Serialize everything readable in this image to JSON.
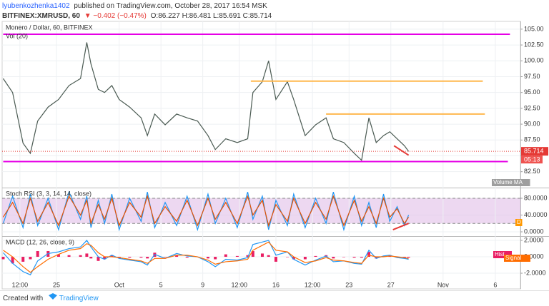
{
  "header": {
    "author": "lyubenkozhenka1402",
    "published": "published on TradingView.com, October 28, 2017 16:54 MSK",
    "symbol": "BITFINEX:XMRUSD, 60",
    "change": "▼ −0.402 (−0.47%)",
    "ohlc": "O:86.227 H:86.481 L:85.691 C:85.714"
  },
  "footer": {
    "created": "Created with",
    "brand": "TradingView"
  },
  "chart_data": [
    {
      "type": "line",
      "title": "Monero / Dollar, 60, BITFINEX",
      "subtitle": "Vol (20)",
      "x": [
        -5.1,
        -4.2,
        -3.2,
        -2.5,
        -1.8,
        -0.8,
        0.2,
        1.2,
        2.3,
        2.9,
        3.3,
        4.0,
        4.6,
        5.3,
        6.0,
        7.0,
        8.1,
        8.7,
        9.4,
        10.4,
        11.5,
        12.5,
        13.5,
        14.5,
        15.2,
        16.2,
        17.3,
        18.3,
        18.8,
        19.7,
        20.3,
        21.0,
        22.1,
        22.7,
        23.8,
        24.8,
        25.8,
        26.5,
        27.5,
        28.5,
        29.2,
        29.9,
        30.6,
        31.3,
        31.9,
        32.6,
        33.3,
        33.7
      ],
      "series": [
        {
          "color": "#4a5a52",
          "values": [
            97.2,
            95,
            87,
            85.4,
            90.5,
            92.7,
            93.9,
            96.1,
            97.2,
            102.9,
            99.5,
            95.5,
            95,
            96.1,
            93.9,
            92.7,
            91,
            88.2,
            91.6,
            89.9,
            91.6,
            91,
            90.5,
            88.2,
            86,
            87.7,
            87.1,
            87.7,
            95,
            96.7,
            100,
            93.9,
            96.7,
            93.9,
            88.2,
            89.9,
            91,
            87.7,
            87.1,
            85.4,
            84.3,
            91,
            87.1,
            88.2,
            88.8,
            87.7,
            86.6,
            85.7
          ]
        }
      ],
      "levels": [
        {
          "color": "#e600e6",
          "x": [
            -5.1,
            43.4
          ],
          "y": [
            104.2,
            104.2
          ]
        },
        {
          "color": "#e600e6",
          "x": [
            -5.1,
            43.2
          ],
          "y": [
            84.1,
            84.1
          ]
        },
        {
          "color": "#ffb74d",
          "x": [
            18.6,
            40.8
          ],
          "y": [
            96.8,
            96.8
          ]
        },
        {
          "color": "#ffb74d",
          "x": [
            25.8,
            41.0
          ],
          "y": [
            91.6,
            91.6
          ]
        },
        {
          "color": "#e53935",
          "x": [
            32.3,
            33.7
          ],
          "y": [
            86.6,
            85.1
          ]
        }
      ],
      "last_price": 85.714,
      "countdown": "05:13",
      "tags": [
        {
          "text": "Volume MA",
          "color": "#9e9e9e"
        }
      ],
      "xlim": [
        -5.2,
        44.4
      ],
      "ylim": [
        80.1,
        106
      ],
      "yticks": [
        {
          "value": 82.5,
          "label": "82.50"
        },
        {
          "value": 85,
          "label": "85.00"
        },
        {
          "value": 87.5,
          "label": "87.50"
        },
        {
          "value": 90,
          "label": "90.00"
        },
        {
          "value": 92.5,
          "label": "92.50"
        },
        {
          "value": 95,
          "label": "95.00"
        },
        {
          "value": 97.5,
          "label": "97.50"
        },
        {
          "value": 100,
          "label": "100.00"
        },
        {
          "value": 102.5,
          "label": "102.50"
        },
        {
          "value": 105,
          "label": "105.00"
        }
      ]
    },
    {
      "type": "line",
      "title": "Stoch RSI (3, 3, 14, 14, close)",
      "x": [
        -5.1,
        -4.2,
        -3.2,
        -2.5,
        -1.8,
        -0.8,
        0.2,
        1.2,
        2.3,
        2.9,
        3.3,
        4.0,
        4.6,
        5.3,
        6.0,
        7.0,
        8.1,
        8.7,
        9.4,
        10.4,
        11.5,
        12.5,
        13.5,
        14.5,
        15.2,
        16.2,
        17.3,
        18.3,
        18.8,
        19.7,
        20.3,
        21.0,
        22.1,
        22.7,
        23.8,
        24.8,
        25.8,
        26.5,
        27.5,
        28.5,
        29.2,
        29.9,
        30.6,
        31.3,
        31.9,
        32.6,
        33.3,
        33.7
      ],
      "series": [
        {
          "color": "#2196f3",
          "values": [
            20,
            85,
            10,
            90,
            15,
            80,
            5,
            95,
            30,
            85,
            10,
            75,
            20,
            90,
            5,
            80,
            25,
            95,
            10,
            70,
            15,
            85,
            5,
            90,
            20,
            80,
            10,
            95,
            30,
            85,
            5,
            75,
            15,
            90,
            10,
            80,
            20,
            95,
            5,
            85,
            15,
            70,
            10,
            90,
            25,
            60,
            15,
            40
          ]
        },
        {
          "color": "#e65100",
          "values": [
            35,
            70,
            20,
            80,
            25,
            70,
            15,
            85,
            40,
            75,
            20,
            65,
            30,
            80,
            15,
            70,
            35,
            85,
            20,
            60,
            25,
            75,
            15,
            80,
            30,
            70,
            20,
            85,
            40,
            75,
            15,
            65,
            25,
            80,
            20,
            70,
            30,
            85,
            15,
            75,
            25,
            60,
            20,
            80,
            35,
            55,
            20,
            35
          ]
        }
      ],
      "band": [
        20,
        80
      ],
      "band_color": "#e1bee7",
      "levels": [
        {
          "color": "#e53935",
          "x": [
            32.2,
            33.7
          ],
          "y": [
            5,
            20
          ]
        }
      ],
      "tags": [
        {
          "text": "D",
          "color": "#ff9800"
        }
      ],
      "xlim": [
        -5.2,
        44.4
      ],
      "ylim": [
        -8.5,
        102
      ],
      "yticks": [
        {
          "value": 0,
          "label": "0.0000"
        },
        {
          "value": 40,
          "label": "40.0000"
        },
        {
          "value": 80,
          "label": "80.0000"
        }
      ]
    },
    {
      "type": "line",
      "title": "MACD (12, 26, close, 9)",
      "x": [
        -5.1,
        -4.2,
        -3.2,
        -2.5,
        -1.8,
        -0.8,
        0.2,
        1.2,
        2.3,
        2.9,
        3.3,
        4.0,
        4.6,
        5.3,
        6.0,
        7.0,
        8.1,
        8.7,
        9.4,
        10.4,
        11.5,
        12.5,
        13.5,
        14.5,
        15.2,
        16.2,
        17.3,
        18.3,
        18.8,
        19.7,
        20.3,
        21.0,
        22.1,
        22.7,
        23.8,
        24.8,
        25.8,
        26.5,
        27.5,
        28.5,
        29.2,
        29.9,
        30.6,
        31.3,
        31.9,
        32.6,
        33.3,
        33.7
      ],
      "histogram": {
        "color": "#e91e63",
        "values": [
          -0.3,
          -0.8,
          -0.6,
          -0.3,
          0.7,
          0.7,
          0.3,
          0.2,
          0.2,
          0.4,
          -0.2,
          -0.5,
          -0.3,
          0.2,
          -0.1,
          -0.1,
          -0.1,
          -0.2,
          0.5,
          0,
          0.2,
          -0.1,
          0,
          -0.2,
          -0.3,
          0.3,
          0.1,
          0.2,
          0.7,
          0.4,
          0.2,
          -0.6,
          0,
          -0.3,
          -0.3,
          0.1,
          0.2,
          -0.2,
          0,
          -0.1,
          -0.1,
          0.6,
          -0.2,
          0.1,
          0.1,
          -0.1,
          -0.1,
          -0.1
        ]
      },
      "series": [
        {
          "color": "#2196f3",
          "values": [
            0.5,
            -0.8,
            -1.8,
            -2.2,
            -0.5,
            0.4,
            0.6,
            1.0,
            1.2,
            2.0,
            1.2,
            0.0,
            -0.3,
            0.2,
            -0.2,
            -0.4,
            -0.6,
            -1.0,
            0.3,
            -0.2,
            0.4,
            0.1,
            0.0,
            -0.6,
            -1.2,
            -0.3,
            -0.4,
            -0.1,
            1.5,
            1.8,
            2.0,
            0.2,
            0.6,
            -0.3,
            -1.0,
            -0.4,
            0.1,
            -0.6,
            -0.5,
            -0.8,
            -0.9,
            0.8,
            -0.2,
            0.1,
            0.2,
            -0.1,
            -0.2,
            -0.3
          ]
        },
        {
          "color": "#ff6d00",
          "values": [
            0.8,
            0.0,
            -1.2,
            -1.9,
            -1.2,
            -0.3,
            0.3,
            0.8,
            1.0,
            1.6,
            1.4,
            0.5,
            0.0,
            0.0,
            -0.1,
            -0.3,
            -0.5,
            -0.8,
            -0.2,
            -0.2,
            0.2,
            0.2,
            0.0,
            -0.4,
            -0.9,
            -0.6,
            -0.5,
            -0.3,
            0.8,
            1.4,
            1.8,
            0.8,
            0.6,
            0.0,
            -0.7,
            -0.5,
            -0.1,
            -0.4,
            -0.5,
            -0.7,
            -0.8,
            0.2,
            0.0,
            0.0,
            0.1,
            0.0,
            -0.1,
            -0.2
          ]
        }
      ],
      "tags": [
        {
          "text": "Hist",
          "color": "#e91e63"
        },
        {
          "text": "Signal",
          "color": "#ff6d00"
        }
      ],
      "xlim": [
        -5.2,
        44.4
      ],
      "ylim": [
        -3.04,
        2.35
      ],
      "yticks": [
        {
          "value": -2,
          "label": "-2.0000"
        },
        {
          "value": 0,
          "label": "0.0000"
        },
        {
          "value": 2,
          "label": "2.0000"
        }
      ],
      "xticks": [
        {
          "value": -3.5,
          "label": "12:00"
        },
        {
          "value": 0,
          "label": "25"
        },
        {
          "value": 6,
          "label": "Oct"
        },
        {
          "value": 10,
          "label": "5"
        },
        {
          "value": 14,
          "label": "9"
        },
        {
          "value": 17.5,
          "label": "12:00"
        },
        {
          "value": 21,
          "label": "16"
        },
        {
          "value": 24.5,
          "label": "12:00"
        },
        {
          "value": 28,
          "label": "23"
        },
        {
          "value": 32,
          "label": "27"
        },
        {
          "value": 37,
          "label": "Nov"
        },
        {
          "value": 42,
          "label": "6"
        }
      ]
    }
  ]
}
